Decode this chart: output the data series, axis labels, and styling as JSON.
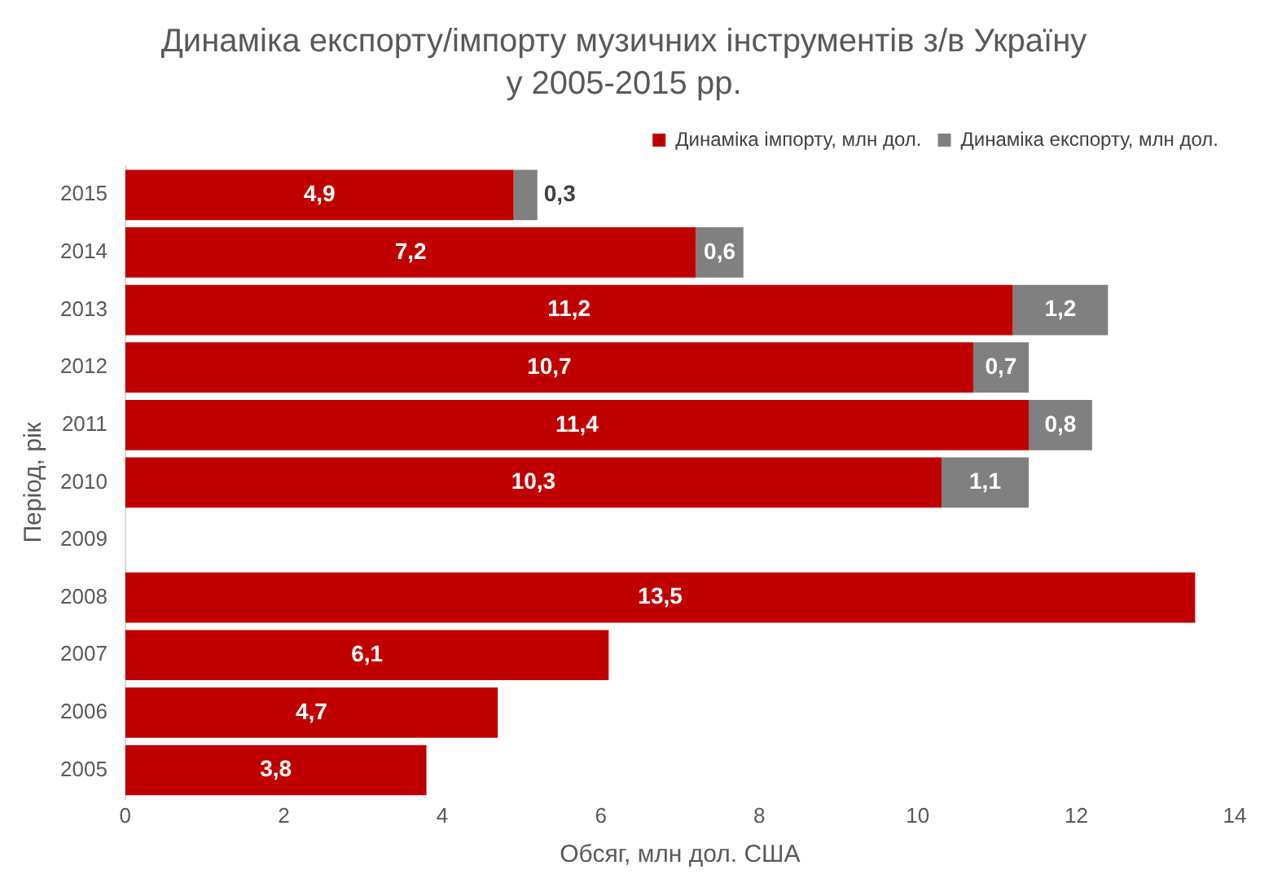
{
  "chart_data": {
    "type": "bar",
    "orientation": "horizontal",
    "stacked": true,
    "title": "Динаміка експорту/імпорту музичних інструментів з/в Україну",
    "subtitle": "у 2005-2015 рр.",
    "xlabel": "Обсяг, млн дол. США",
    "ylabel": "Період, рік",
    "categories": [
      "2015",
      "2014",
      "2013",
      "2012",
      "2011",
      "2010",
      "2009",
      "2008",
      "2007",
      "2006",
      "2005"
    ],
    "series": [
      {
        "name": "Динаміка імпорту, млн дол.",
        "color": "#c00000",
        "values": [
          4.9,
          7.2,
          11.2,
          10.7,
          11.4,
          10.3,
          null,
          13.5,
          6.1,
          4.7,
          3.8
        ],
        "value_labels": [
          "4,9",
          "7,2",
          "11,2",
          "10,7",
          "11,4",
          "10,3",
          null,
          "13,5",
          "6,1",
          "4,7",
          "3,8"
        ]
      },
      {
        "name": "Динаміка експорту, млн дол.",
        "color": "#808080",
        "values": [
          0.3,
          0.6,
          1.2,
          0.7,
          0.8,
          1.1,
          null,
          null,
          null,
          null,
          null
        ],
        "value_labels": [
          "0,3",
          "0,6",
          "1,2",
          "0,7",
          "0,8",
          "1,1",
          null,
          null,
          null,
          null,
          null
        ]
      }
    ],
    "xlim": [
      0,
      14
    ],
    "xticks": [
      0,
      2,
      4,
      6,
      8,
      10,
      12,
      14
    ],
    "grid": false,
    "legend": "top right"
  }
}
